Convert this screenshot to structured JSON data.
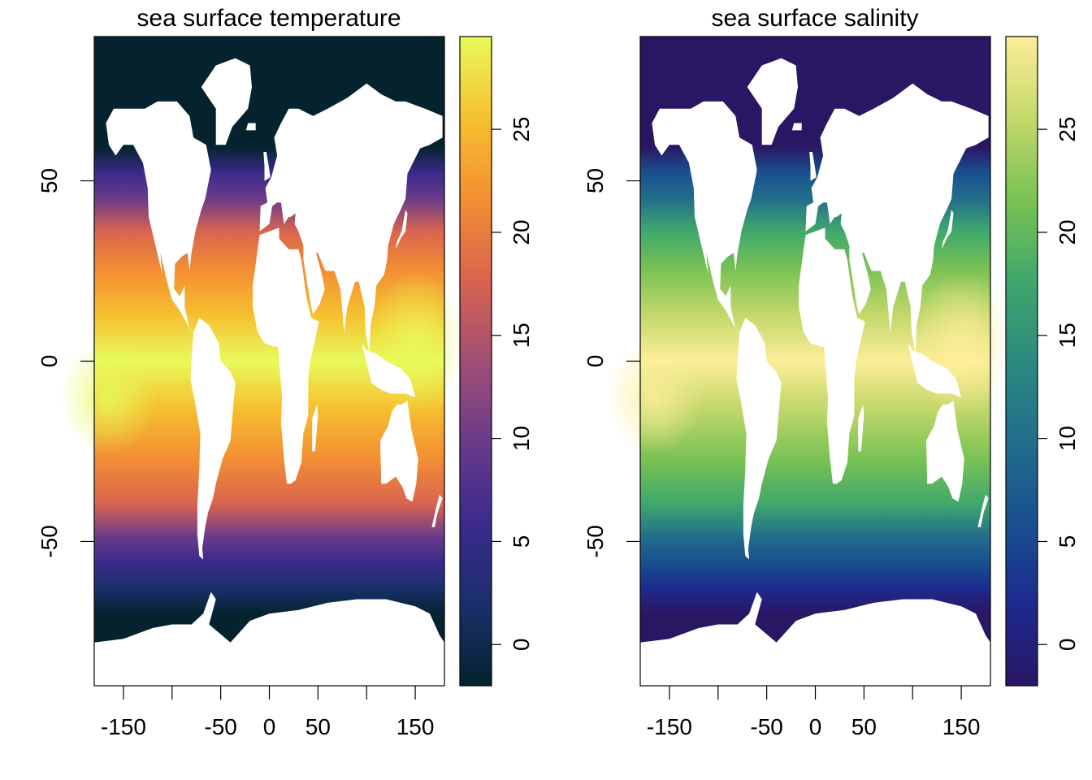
{
  "panels": [
    {
      "title": "sea surface temperature",
      "colormap": "thermal",
      "colors": [
        "#04232e",
        "#1a2f6b",
        "#3b2a8c",
        "#6a3b8a",
        "#a04e75",
        "#d9644f",
        "#f38e33",
        "#f6c130",
        "#e8fa5b"
      ],
      "x_ticks": [
        {
          "value": -150,
          "label": "-150"
        },
        {
          "value": -100,
          "label": ""
        },
        {
          "value": -50,
          "label": "-50"
        },
        {
          "value": 0,
          "label": "0"
        },
        {
          "value": 50,
          "label": "50"
        },
        {
          "value": 100,
          "label": ""
        },
        {
          "value": 150,
          "label": "150"
        }
      ],
      "y_ticks": [
        {
          "value": -50,
          "label": "-50"
        },
        {
          "value": 0,
          "label": "0"
        },
        {
          "value": 50,
          "label": "50"
        }
      ],
      "colorbar_ticks": [
        "0",
        "5",
        "10",
        "15",
        "20",
        "25"
      ],
      "colorbar_range": [
        -2,
        29.5
      ]
    },
    {
      "title": "sea surface salinity",
      "colormap": "haline",
      "colors": [
        "#2a1764",
        "#1d2a8e",
        "#18508e",
        "#226d8c",
        "#2b8a7f",
        "#3fa86b",
        "#7bc254",
        "#c4d86b",
        "#fdee99"
      ],
      "x_ticks": [
        {
          "value": -150,
          "label": "-150"
        },
        {
          "value": -100,
          "label": ""
        },
        {
          "value": -50,
          "label": "-50"
        },
        {
          "value": 0,
          "label": "0"
        },
        {
          "value": 50,
          "label": "50"
        },
        {
          "value": 100,
          "label": ""
        },
        {
          "value": 150,
          "label": "150"
        }
      ],
      "y_ticks": [
        {
          "value": -50,
          "label": "-50"
        },
        {
          "value": 0,
          "label": "0"
        },
        {
          "value": 50,
          "label": "50"
        }
      ],
      "colorbar_ticks": [
        "0",
        "5",
        "10",
        "15",
        "20",
        "25"
      ],
      "colorbar_range": [
        -2,
        29.5
      ]
    }
  ],
  "map_extent": {
    "lon": [
      -180,
      180
    ],
    "lat": [
      -90,
      90
    ]
  }
}
